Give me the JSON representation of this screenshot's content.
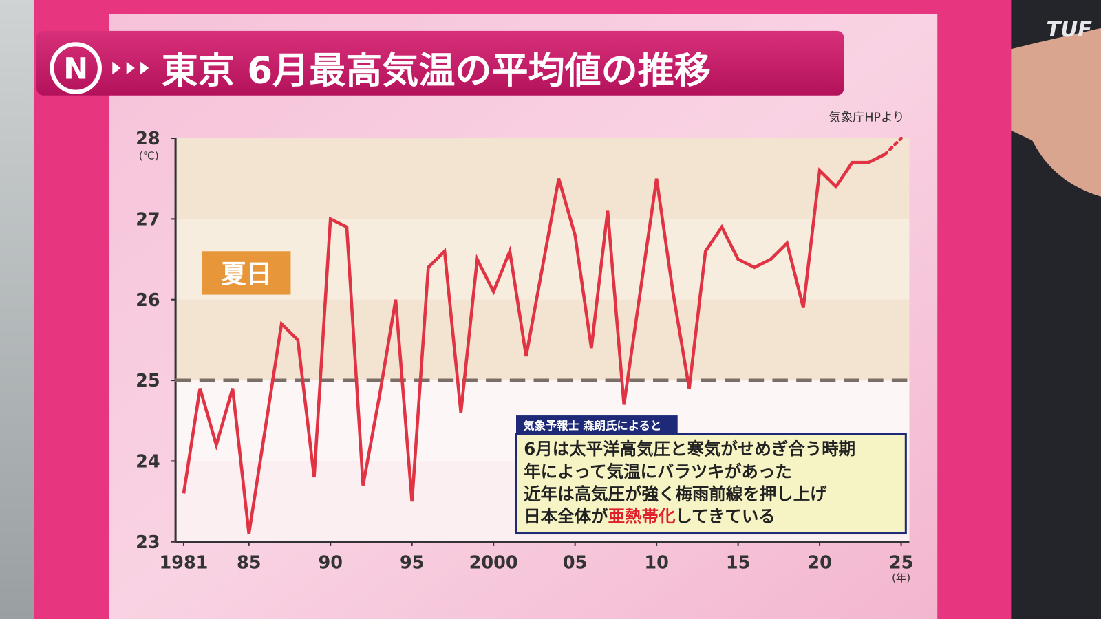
{
  "chart_data": {
    "type": "line",
    "title": "東京 6月最高気温の平均値の推移",
    "source": "気象庁HPより",
    "y_unit": "(℃)",
    "x_unit": "(年)",
    "channel_logo": "TUF",
    "band_label": "夏日",
    "reference_line": 25,
    "x": [
      1981,
      1982,
      1983,
      1984,
      1985,
      1986,
      1987,
      1988,
      1989,
      1990,
      1991,
      1992,
      1993,
      1994,
      1995,
      1996,
      1997,
      1998,
      1999,
      2000,
      2001,
      2002,
      2003,
      2004,
      2005,
      2006,
      2007,
      2008,
      2009,
      2010,
      2011,
      2012,
      2013,
      2014,
      2015,
      2016,
      2017,
      2018,
      2019,
      2020,
      2021,
      2022,
      2023,
      2024,
      2025
    ],
    "series": [
      {
        "color": "#e03445",
        "values": [
          23.6,
          24.9,
          24.2,
          24.9,
          23.1,
          24.4,
          25.7,
          25.5,
          23.8,
          27.0,
          26.9,
          23.7,
          24.8,
          26.0,
          23.5,
          26.4,
          26.6,
          24.6,
          26.5,
          26.1,
          26.6,
          25.3,
          26.4,
          27.5,
          26.8,
          25.4,
          27.1,
          24.7,
          26.1,
          27.5,
          26.1,
          24.9,
          26.6,
          26.9,
          26.5,
          26.4,
          26.5,
          26.7,
          25.9,
          27.6,
          27.4,
          27.7,
          27.7,
          27.8,
          28.0
        ]
      }
    ],
    "dotted_last_segment": true,
    "xlim": [
      1980.5,
      2025.5
    ],
    "xticks": [
      {
        "value": 1981,
        "label": "1981"
      },
      {
        "value": 1985,
        "label": "85"
      },
      {
        "value": 1990,
        "label": "90"
      },
      {
        "value": 1995,
        "label": "95"
      },
      {
        "value": 2000,
        "label": "2000"
      },
      {
        "value": 2005,
        "label": "05"
      },
      {
        "value": 2010,
        "label": "10"
      },
      {
        "value": 2015,
        "label": "15"
      },
      {
        "value": 2020,
        "label": "20"
      },
      {
        "value": 2025,
        "label": "25"
      }
    ],
    "ylim": [
      23,
      28
    ],
    "yticks": [
      23,
      24,
      25,
      26,
      27,
      28
    ],
    "callout": {
      "header": "気象予報士 森朗氏によると",
      "lines": [
        "6月は太平洋高気圧と寒気がせめぎ合う時期",
        "年によって気温にバラツキがあった",
        "近年は高気圧が強く梅雨前線を押し上げ"
      ],
      "last_line": [
        "日本全体が",
        "亜熱帯化",
        "してきている"
      ]
    }
  }
}
